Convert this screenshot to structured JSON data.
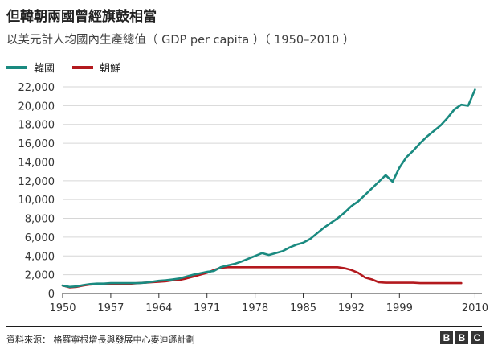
{
  "header": {
    "title": "但韓朝兩國曾經旗鼓相當",
    "subtitle": "以美元計人均國內生產總值（ GDP per capita ）（ 1950–2010 ）"
  },
  "legend": {
    "items": [
      {
        "label": "韓國",
        "color": "#1a8a80"
      },
      {
        "label": "朝鮮",
        "color": "#b3191e"
      }
    ]
  },
  "footer": {
    "source": "資料來源： 格羅寧根增長與發展中心麥迪遜計劃",
    "logo_letters": [
      "B",
      "B",
      "C"
    ]
  },
  "chart_data": {
    "type": "line",
    "title": "但韓朝兩國曾經旗鼓相當",
    "subtitle": "以美元計人均國內生產總值（ GDP per capita ）（ 1950–2010 ）",
    "xlabel": "",
    "ylabel": "",
    "xlim": [
      1950,
      2011
    ],
    "ylim": [
      0,
      22000
    ],
    "x_ticks": [
      1950,
      1957,
      1964,
      1971,
      1978,
      1985,
      1992,
      1999,
      2010
    ],
    "y_ticks": [
      0,
      2000,
      4000,
      6000,
      8000,
      10000,
      12000,
      14000,
      16000,
      18000,
      20000,
      22000
    ],
    "grid": true,
    "legend_position": "top-left",
    "series": [
      {
        "name": "韓國",
        "color": "#1a8a80",
        "x": [
          1950,
          1951,
          1952,
          1953,
          1954,
          1955,
          1956,
          1957,
          1958,
          1959,
          1960,
          1961,
          1962,
          1963,
          1964,
          1965,
          1966,
          1967,
          1968,
          1969,
          1970,
          1971,
          1972,
          1973,
          1974,
          1975,
          1976,
          1977,
          1978,
          1979,
          1980,
          1981,
          1982,
          1983,
          1984,
          1985,
          1986,
          1987,
          1988,
          1989,
          1990,
          1991,
          1992,
          1993,
          1994,
          1995,
          1996,
          1997,
          1998,
          1999,
          2000,
          2001,
          2002,
          2003,
          2004,
          2005,
          2006,
          2007,
          2008,
          2009,
          2010
        ],
        "values": [
          850,
          700,
          750,
          900,
          1000,
          1050,
          1050,
          1100,
          1100,
          1100,
          1100,
          1100,
          1150,
          1250,
          1350,
          1400,
          1500,
          1600,
          1800,
          2000,
          2150,
          2300,
          2400,
          2800,
          3000,
          3150,
          3400,
          3700,
          4000,
          4300,
          4100,
          4300,
          4500,
          4900,
          5200,
          5400,
          5800,
          6400,
          7000,
          7500,
          8000,
          8600,
          9300,
          9800,
          10500,
          11200,
          11900,
          12600,
          11900,
          13400,
          14500,
          15200,
          16000,
          16700,
          17300,
          17900,
          18700,
          19600,
          20100,
          20000,
          21700
        ]
      },
      {
        "name": "朝鮮",
        "color": "#b3191e",
        "x": [
          1950,
          1951,
          1952,
          1953,
          1954,
          1955,
          1956,
          1957,
          1958,
          1959,
          1960,
          1961,
          1962,
          1963,
          1964,
          1965,
          1966,
          1967,
          1968,
          1969,
          1970,
          1971,
          1972,
          1973,
          1974,
          1975,
          1976,
          1977,
          1978,
          1979,
          1980,
          1981,
          1982,
          1983,
          1984,
          1985,
          1986,
          1987,
          1988,
          1989,
          1990,
          1991,
          1992,
          1993,
          1994,
          1995,
          1996,
          1997,
          1998,
          1999,
          2000,
          2001,
          2002,
          2003,
          2004,
          2005,
          2006,
          2007,
          2008
        ],
        "values": [
          850,
          650,
          700,
          850,
          950,
          1000,
          1000,
          1050,
          1050,
          1050,
          1050,
          1100,
          1150,
          1200,
          1250,
          1300,
          1400,
          1450,
          1600,
          1800,
          2000,
          2200,
          2500,
          2750,
          2800,
          2800,
          2800,
          2800,
          2800,
          2800,
          2800,
          2800,
          2800,
          2800,
          2800,
          2800,
          2800,
          2800,
          2800,
          2800,
          2800,
          2700,
          2500,
          2200,
          1700,
          1500,
          1200,
          1150,
          1150,
          1150,
          1150,
          1150,
          1100,
          1100,
          1100,
          1100,
          1100,
          1100,
          1100
        ]
      }
    ]
  }
}
